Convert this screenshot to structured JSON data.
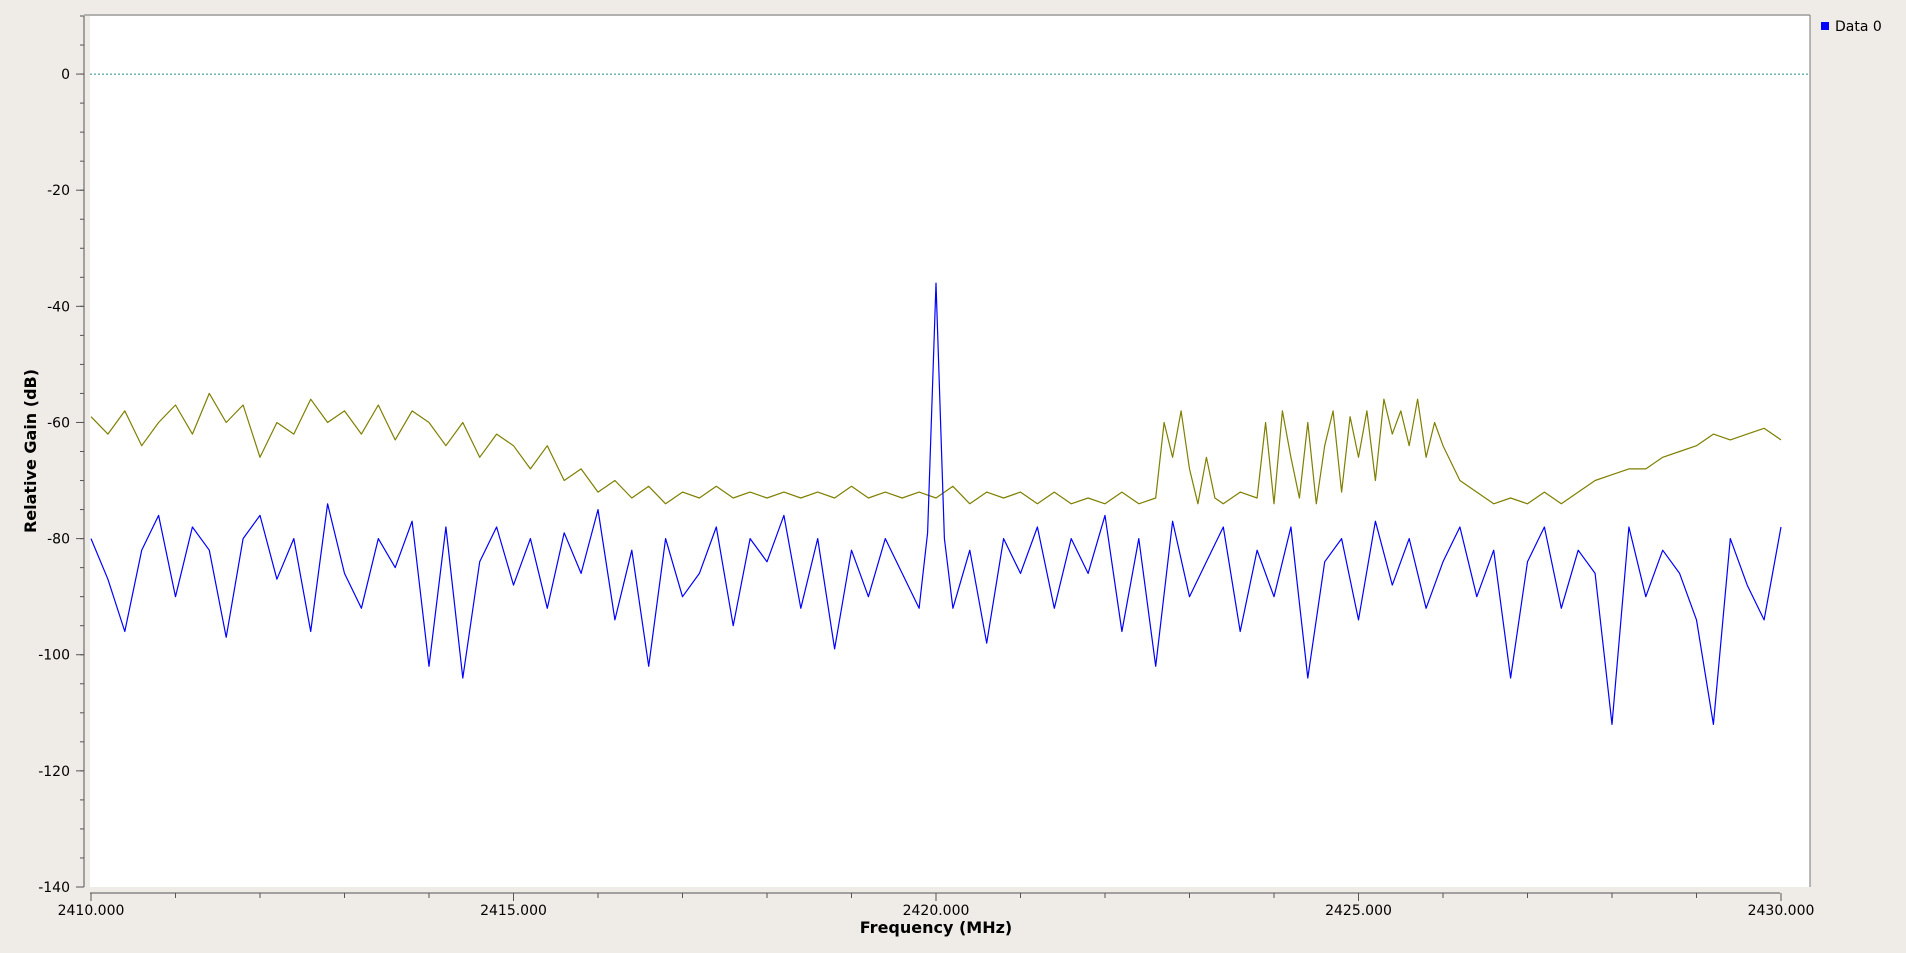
{
  "chart_data": {
    "type": "line",
    "xlabel": "Frequency (MHz)",
    "ylabel": "Relative Gain (dB)",
    "xlim": [
      2410.0,
      2430.0
    ],
    "ylim": [
      -140,
      10
    ],
    "xticks": [
      2410,
      2415,
      2420,
      2425,
      2430
    ],
    "xtick_labels": [
      "2410.000",
      "2415.000",
      "2420.000",
      "2425.000",
      "2430.000"
    ],
    "yticks": [
      0,
      -20,
      -40,
      -60,
      -80,
      -100,
      -120,
      -140
    ],
    "ytick_labels": [
      "0",
      "-20",
      "-40",
      "-60",
      "-80",
      "-100",
      "-120",
      "-140"
    ],
    "grid": false,
    "reference_line": {
      "y": 0,
      "color": "#2a8a8a",
      "style": "dotted"
    },
    "legend": {
      "position": "top-right",
      "entries": [
        {
          "label": "Data 0",
          "color": "#0000ff"
        }
      ]
    },
    "series": [
      {
        "name": "Data 0",
        "color": "#0000ff",
        "x": [
          2410.0,
          2410.2,
          2410.4,
          2410.6,
          2410.8,
          2411.0,
          2411.2,
          2411.4,
          2411.6,
          2411.8,
          2412.0,
          2412.2,
          2412.4,
          2412.6,
          2412.8,
          2413.0,
          2413.2,
          2413.4,
          2413.6,
          2413.8,
          2414.0,
          2414.2,
          2414.4,
          2414.6,
          2414.8,
          2415.0,
          2415.2,
          2415.4,
          2415.6,
          2415.8,
          2416.0,
          2416.2,
          2416.4,
          2416.6,
          2416.8,
          2417.0,
          2417.2,
          2417.4,
          2417.6,
          2417.8,
          2418.0,
          2418.2,
          2418.4,
          2418.6,
          2418.8,
          2419.0,
          2419.2,
          2419.4,
          2419.6,
          2419.8,
          2419.9,
          2420.0,
          2420.1,
          2420.2,
          2420.4,
          2420.6,
          2420.8,
          2421.0,
          2421.2,
          2421.4,
          2421.6,
          2421.8,
          2422.0,
          2422.2,
          2422.4,
          2422.6,
          2422.8,
          2423.0,
          2423.2,
          2423.4,
          2423.6,
          2423.8,
          2424.0,
          2424.2,
          2424.4,
          2424.6,
          2424.8,
          2425.0,
          2425.2,
          2425.4,
          2425.6,
          2425.8,
          2426.0,
          2426.2,
          2426.4,
          2426.6,
          2426.8,
          2427.0,
          2427.2,
          2427.4,
          2427.6,
          2427.8,
          2428.0,
          2428.2,
          2428.4,
          2428.6,
          2428.8,
          2429.0,
          2429.2,
          2429.4,
          2429.6,
          2429.8,
          2430.0
        ],
        "y": [
          -80,
          -87,
          -96,
          -82,
          -76,
          -90,
          -78,
          -82,
          -97,
          -80,
          -76,
          -87,
          -80,
          -96,
          -74,
          -86,
          -92,
          -80,
          -85,
          -77,
          -102,
          -78,
          -104,
          -84,
          -78,
          -88,
          -80,
          -92,
          -79,
          -86,
          -75,
          -94,
          -82,
          -102,
          -80,
          -90,
          -86,
          -78,
          -95,
          -80,
          -84,
          -76,
          -92,
          -80,
          -99,
          -82,
          -90,
          -80,
          -86,
          -92,
          -79,
          -36,
          -80,
          -92,
          -82,
          -98,
          -80,
          -86,
          -78,
          -92,
          -80,
          -86,
          -76,
          -96,
          -80,
          -102,
          -77,
          -90,
          -84,
          -78,
          -96,
          -82,
          -90,
          -78,
          -104,
          -84,
          -80,
          -94,
          -77,
          -88,
          -80,
          -92,
          -84,
          -78,
          -90,
          -82,
          -104,
          -84,
          -78,
          -92,
          -82,
          -86,
          -112,
          -78,
          -90,
          -82,
          -86,
          -94,
          -112,
          -80,
          -88,
          -94,
          -78
        ],
        "tail_x": [
          2430.0,
          2430.0
        ]
      },
      {
        "color": "#7f7f00",
        "x": [
          2410.0,
          2410.2,
          2410.4,
          2410.6,
          2410.8,
          2411.0,
          2411.2,
          2411.4,
          2411.6,
          2411.8,
          2412.0,
          2412.2,
          2412.4,
          2412.6,
          2412.8,
          2413.0,
          2413.2,
          2413.4,
          2413.6,
          2413.8,
          2414.0,
          2414.2,
          2414.4,
          2414.6,
          2414.8,
          2415.0,
          2415.2,
          2415.4,
          2415.6,
          2415.8,
          2416.0,
          2416.2,
          2416.4,
          2416.6,
          2416.8,
          2417.0,
          2417.2,
          2417.4,
          2417.6,
          2417.8,
          2418.0,
          2418.2,
          2418.4,
          2418.6,
          2418.8,
          2419.0,
          2419.2,
          2419.4,
          2419.6,
          2419.8,
          2420.0,
          2420.2,
          2420.4,
          2420.6,
          2420.8,
          2421.0,
          2421.2,
          2421.4,
          2421.6,
          2421.8,
          2422.0,
          2422.2,
          2422.4,
          2422.6,
          2422.7,
          2422.8,
          2422.9,
          2423.0,
          2423.1,
          2423.2,
          2423.3,
          2423.4,
          2423.6,
          2423.8,
          2423.9,
          2424.0,
          2424.1,
          2424.2,
          2424.3,
          2424.4,
          2424.5,
          2424.6,
          2424.7,
          2424.8,
          2424.9,
          2425.0,
          2425.1,
          2425.2,
          2425.3,
          2425.4,
          2425.5,
          2425.6,
          2425.7,
          2425.8,
          2425.9,
          2426.0,
          2426.2,
          2426.4,
          2426.6,
          2426.8,
          2427.0,
          2427.2,
          2427.4,
          2427.6,
          2427.8,
          2428.0,
          2428.2,
          2428.4,
          2428.6,
          2428.8,
          2429.0,
          2429.2,
          2429.4,
          2429.6,
          2429.8,
          2430.0
        ],
        "y": [
          -59,
          -62,
          -58,
          -64,
          -60,
          -57,
          -62,
          -55,
          -60,
          -57,
          -66,
          -60,
          -62,
          -56,
          -60,
          -58,
          -62,
          -57,
          -63,
          -58,
          -60,
          -64,
          -60,
          -66,
          -62,
          -64,
          -68,
          -64,
          -70,
          -68,
          -72,
          -70,
          -73,
          -71,
          -74,
          -72,
          -73,
          -71,
          -73,
          -72,
          -73,
          -72,
          -73,
          -72,
          -73,
          -71,
          -73,
          -72,
          -73,
          -72,
          -73,
          -71,
          -74,
          -72,
          -73,
          -72,
          -74,
          -72,
          -74,
          -73,
          -74,
          -72,
          -74,
          -73,
          -60,
          -66,
          -58,
          -68,
          -74,
          -66,
          -73,
          -74,
          -72,
          -73,
          -60,
          -74,
          -58,
          -66,
          -73,
          -60,
          -74,
          -64,
          -58,
          -72,
          -59,
          -66,
          -58,
          -70,
          -56,
          -62,
          -58,
          -64,
          -56,
          -66,
          -60,
          -64,
          -70,
          -72,
          -74,
          -73,
          -74,
          -72,
          -74,
          -72,
          -70,
          -69,
          -68,
          -68,
          -66,
          -65,
          -64,
          -62,
          -63,
          -62,
          -61,
          -63
        ]
      }
    ]
  }
}
